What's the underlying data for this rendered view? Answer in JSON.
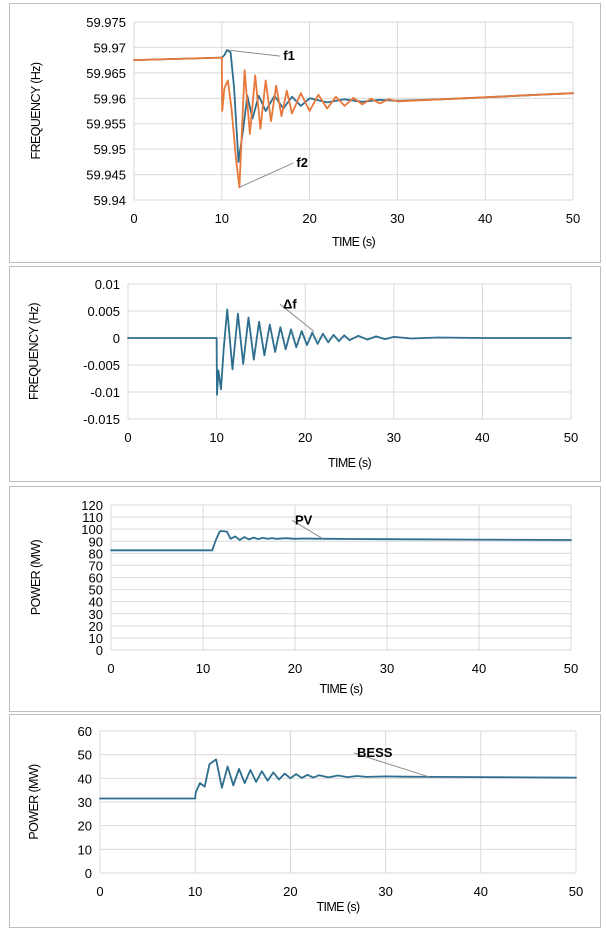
{
  "chart_data": [
    {
      "type": "line",
      "ylabel": "FREQUENCY (Hz)",
      "xlabel": "TIME (s)",
      "xlim": [
        0,
        50
      ],
      "ylim": [
        59.94,
        59.975
      ],
      "xticks": [
        "0",
        "10",
        "20",
        "30",
        "40",
        "50"
      ],
      "yticks": [
        "59.94",
        "59.945",
        "59.95",
        "59.955",
        "59.96",
        "59.965",
        "59.97",
        "59.975"
      ],
      "grid": true,
      "series": [
        {
          "name": "f1",
          "color": "#2e6e8e",
          "x": [
            0,
            10,
            10.3,
            10.6,
            11.0,
            11.4,
            11.9,
            12.4,
            12.9,
            13.5,
            14.2,
            15,
            16,
            17,
            18,
            19,
            20,
            22,
            24,
            26,
            28,
            30,
            35,
            40,
            45,
            50
          ],
          "y": [
            59.9675,
            59.968,
            59.9685,
            59.9695,
            59.969,
            59.962,
            59.9475,
            59.9535,
            59.9605,
            59.956,
            59.9605,
            59.9575,
            59.9605,
            59.958,
            59.9603,
            59.9585,
            59.96,
            59.9592,
            59.9598,
            59.9593,
            59.9597,
            59.9595,
            59.9598,
            59.9602,
            59.9606,
            59.961
          ]
        },
        {
          "name": "f2",
          "color": "#e8773a",
          "x": [
            0,
            10,
            10.05,
            10.3,
            10.7,
            11.1,
            11.6,
            12.0,
            12.6,
            13.2,
            13.8,
            14.4,
            15.0,
            15.6,
            16.2,
            16.8,
            17.4,
            18,
            19,
            20,
            21,
            22,
            23,
            24,
            25,
            26,
            27,
            28,
            29,
            30,
            35,
            40,
            45,
            50
          ],
          "y": [
            59.9675,
            59.968,
            59.9575,
            59.962,
            59.9635,
            59.958,
            59.9485,
            59.9425,
            59.9655,
            59.953,
            59.9645,
            59.954,
            59.9635,
            59.9555,
            59.9625,
            59.9565,
            59.9615,
            59.957,
            59.961,
            59.9575,
            59.9607,
            59.958,
            59.9603,
            59.9585,
            59.9601,
            59.9588,
            59.9599,
            59.959,
            59.9598,
            59.9594,
            59.9598,
            59.9602,
            59.9606,
            59.961
          ]
        }
      ],
      "annotations": [
        {
          "text": "f1",
          "series": 0,
          "target": [
            10.6,
            59.9695
          ],
          "label_at": [
            17.0,
            59.9675
          ]
        },
        {
          "text": "f2",
          "series": 1,
          "target": [
            12.0,
            59.9425
          ],
          "label_at": [
            18.5,
            59.9465
          ]
        }
      ]
    },
    {
      "type": "line",
      "ylabel": "FREQUENCY (Hz)",
      "xlabel": "TIME (s)",
      "xlim": [
        0,
        50
      ],
      "ylim": [
        -0.015,
        0.01
      ],
      "xticks": [
        "0",
        "10",
        "20",
        "30",
        "40",
        "50"
      ],
      "yticks": [
        "-0.015",
        "-0.01",
        "-0.005",
        "0",
        "0.005",
        "0.01"
      ],
      "grid": true,
      "series": [
        {
          "name": "Δf",
          "color": "#2e6e8e",
          "x": [
            0,
            10,
            10.05,
            10.2,
            10.5,
            10.8,
            11.2,
            11.8,
            12.4,
            13.0,
            13.6,
            14.2,
            14.8,
            15.4,
            16.0,
            16.6,
            17.2,
            17.8,
            18.4,
            19.0,
            19.6,
            20.2,
            20.8,
            21.4,
            22.0,
            22.6,
            23.2,
            23.8,
            24.4,
            25,
            26,
            27,
            28,
            29,
            30,
            32,
            35,
            40,
            45,
            50
          ],
          "y": [
            0,
            0,
            -0.0105,
            -0.006,
            -0.0095,
            -0.002,
            0.0053,
            -0.0058,
            0.0045,
            -0.0048,
            0.0038,
            -0.004,
            0.003,
            -0.0032,
            0.0025,
            -0.0026,
            0.002,
            -0.0021,
            0.0016,
            -0.0017,
            0.0013,
            -0.0013,
            0.001,
            -0.0011,
            0.0008,
            -0.0008,
            0.0006,
            -0.0006,
            0.0005,
            -0.0004,
            0.0004,
            -0.0003,
            0.0003,
            -0.0002,
            0.0002,
            -0.0001,
            0.0001,
            0,
            0,
            0
          ]
        }
      ],
      "annotations": [
        {
          "text": "Δf",
          "series": 0,
          "target": [
            21.0,
            0.0012
          ],
          "label_at": [
            17.5,
            0.0055
          ]
        }
      ]
    },
    {
      "type": "line",
      "ylabel": "POWER (MW)",
      "xlabel": "TIME (s)",
      "xlim": [
        0,
        50
      ],
      "ylim": [
        0,
        120
      ],
      "xticks": [
        "0",
        "10",
        "20",
        "30",
        "40",
        "50"
      ],
      "yticks": [
        "0",
        "10",
        "20",
        "30",
        "40",
        "50",
        "60",
        "70",
        "80",
        "90",
        "100",
        "110",
        "120"
      ],
      "grid": true,
      "series": [
        {
          "name": "PV",
          "color": "#2e6e8e",
          "x": [
            0,
            5,
            10,
            11.0,
            11.4,
            11.8,
            12.0,
            12.6,
            13.0,
            13.5,
            14.0,
            14.5,
            15.0,
            15.5,
            16.0,
            16.5,
            17.0,
            17.5,
            18,
            19,
            20,
            21,
            22,
            24,
            26,
            30,
            40,
            50
          ],
          "y": [
            82.5,
            82.5,
            82.5,
            82.5,
            91,
            98,
            98.5,
            98,
            92,
            94,
            91,
            93.5,
            91.5,
            93,
            91.8,
            92.8,
            92,
            92.6,
            92,
            92.5,
            92,
            92.3,
            92.1,
            92,
            91.9,
            91.7,
            91.4,
            91
          ]
        }
      ],
      "annotations": [
        {
          "text": "PV",
          "series": 0,
          "target": [
            23.0,
            92.2
          ],
          "label_at": [
            20.0,
            104
          ]
        }
      ]
    },
    {
      "type": "line",
      "ylabel": "POWER (MW)",
      "xlabel": "TIME (s)",
      "xlim": [
        0,
        50
      ],
      "ylim": [
        0,
        60
      ],
      "xticks": [
        "0",
        "10",
        "20",
        "30",
        "40",
        "50"
      ],
      "yticks": [
        "0",
        "10",
        "20",
        "30",
        "40",
        "50",
        "60"
      ],
      "grid": true,
      "series": [
        {
          "name": "BESS",
          "color": "#2e6e8e",
          "x": [
            0,
            5,
            10,
            10.05,
            10.5,
            11.0,
            11.5,
            12.2,
            12.8,
            13.4,
            14.0,
            14.6,
            15.2,
            15.8,
            16.4,
            17.0,
            17.6,
            18.2,
            18.8,
            19.4,
            20.0,
            20.6,
            21.2,
            21.8,
            22.4,
            23.0,
            24,
            25,
            26,
            27,
            28,
            30,
            32,
            35,
            40,
            45,
            50
          ],
          "y": [
            31.5,
            31.5,
            31.5,
            34,
            38,
            36.5,
            46,
            48,
            36,
            45,
            37,
            44,
            38,
            43.5,
            38.5,
            43,
            39,
            42.5,
            39.5,
            42,
            40,
            41.8,
            40.2,
            41.5,
            40.3,
            41.3,
            40.4,
            41.2,
            40.5,
            41,
            40.6,
            40.8,
            40.7,
            40.6,
            40.5,
            40.4,
            40.3
          ]
        }
      ],
      "annotations": [
        {
          "text": "BESS",
          "series": 0,
          "target": [
            34.5,
            40.7
          ],
          "label_at": [
            27.0,
            49
          ]
        }
      ]
    }
  ]
}
